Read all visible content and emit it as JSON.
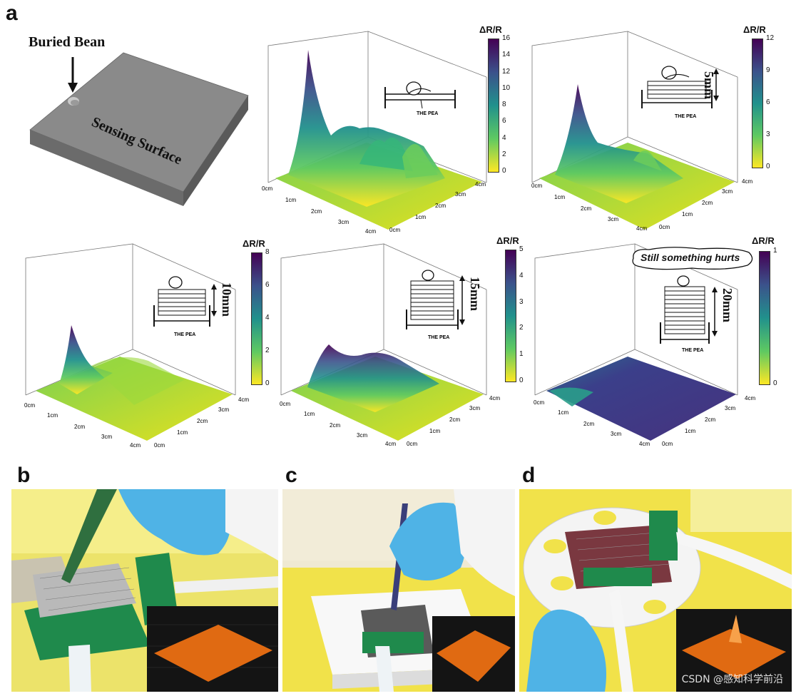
{
  "panel_labels": {
    "a": "a",
    "b": "b",
    "c": "c",
    "d": "d"
  },
  "schematic": {
    "buried_label": "Buried Bean",
    "surface_label": "Sensing Surface"
  },
  "cbar_title": "ΔR/R",
  "axis_ticks_x": [
    "0cm",
    "1cm",
    "2cm",
    "3cm",
    "4cm"
  ],
  "axis_ticks_y": [
    "0cm",
    "1cm",
    "2cm",
    "3cm",
    "4cm"
  ],
  "plots": [
    {
      "id": "p0",
      "ticks": [
        "16",
        "14",
        "12",
        "10",
        "8",
        "6",
        "4",
        "2",
        "0"
      ],
      "height_label": ""
    },
    {
      "id": "p1",
      "ticks": [
        "12",
        "9",
        "6",
        "3",
        "0"
      ],
      "height_label": "5mm"
    },
    {
      "id": "p2",
      "ticks": [
        "8",
        "6",
        "4",
        "2",
        "0"
      ],
      "height_label": "10mm"
    },
    {
      "id": "p3",
      "ticks": [
        "5",
        "4",
        "3",
        "2",
        "1",
        "0"
      ],
      "height_label": "15mm"
    },
    {
      "id": "p4",
      "ticks": [
        "1",
        "0"
      ],
      "height_label": "20mm"
    }
  ],
  "cartoon": {
    "pea_label": "THE PEA",
    "speech": "Still something hurts"
  },
  "watermark": "CSDN @感知科学前沿",
  "colors": {
    "viridis_top": "#440154",
    "viridis_mid": "#21918c",
    "viridis_low": "#5ec962",
    "viridis_bottom": "#fde725",
    "photo_bg_yellow": "#f1e24a",
    "pcb_green": "#1f8a4c",
    "glove_blue": "#4fb3e6",
    "inset_orange": "#e06a12"
  }
}
